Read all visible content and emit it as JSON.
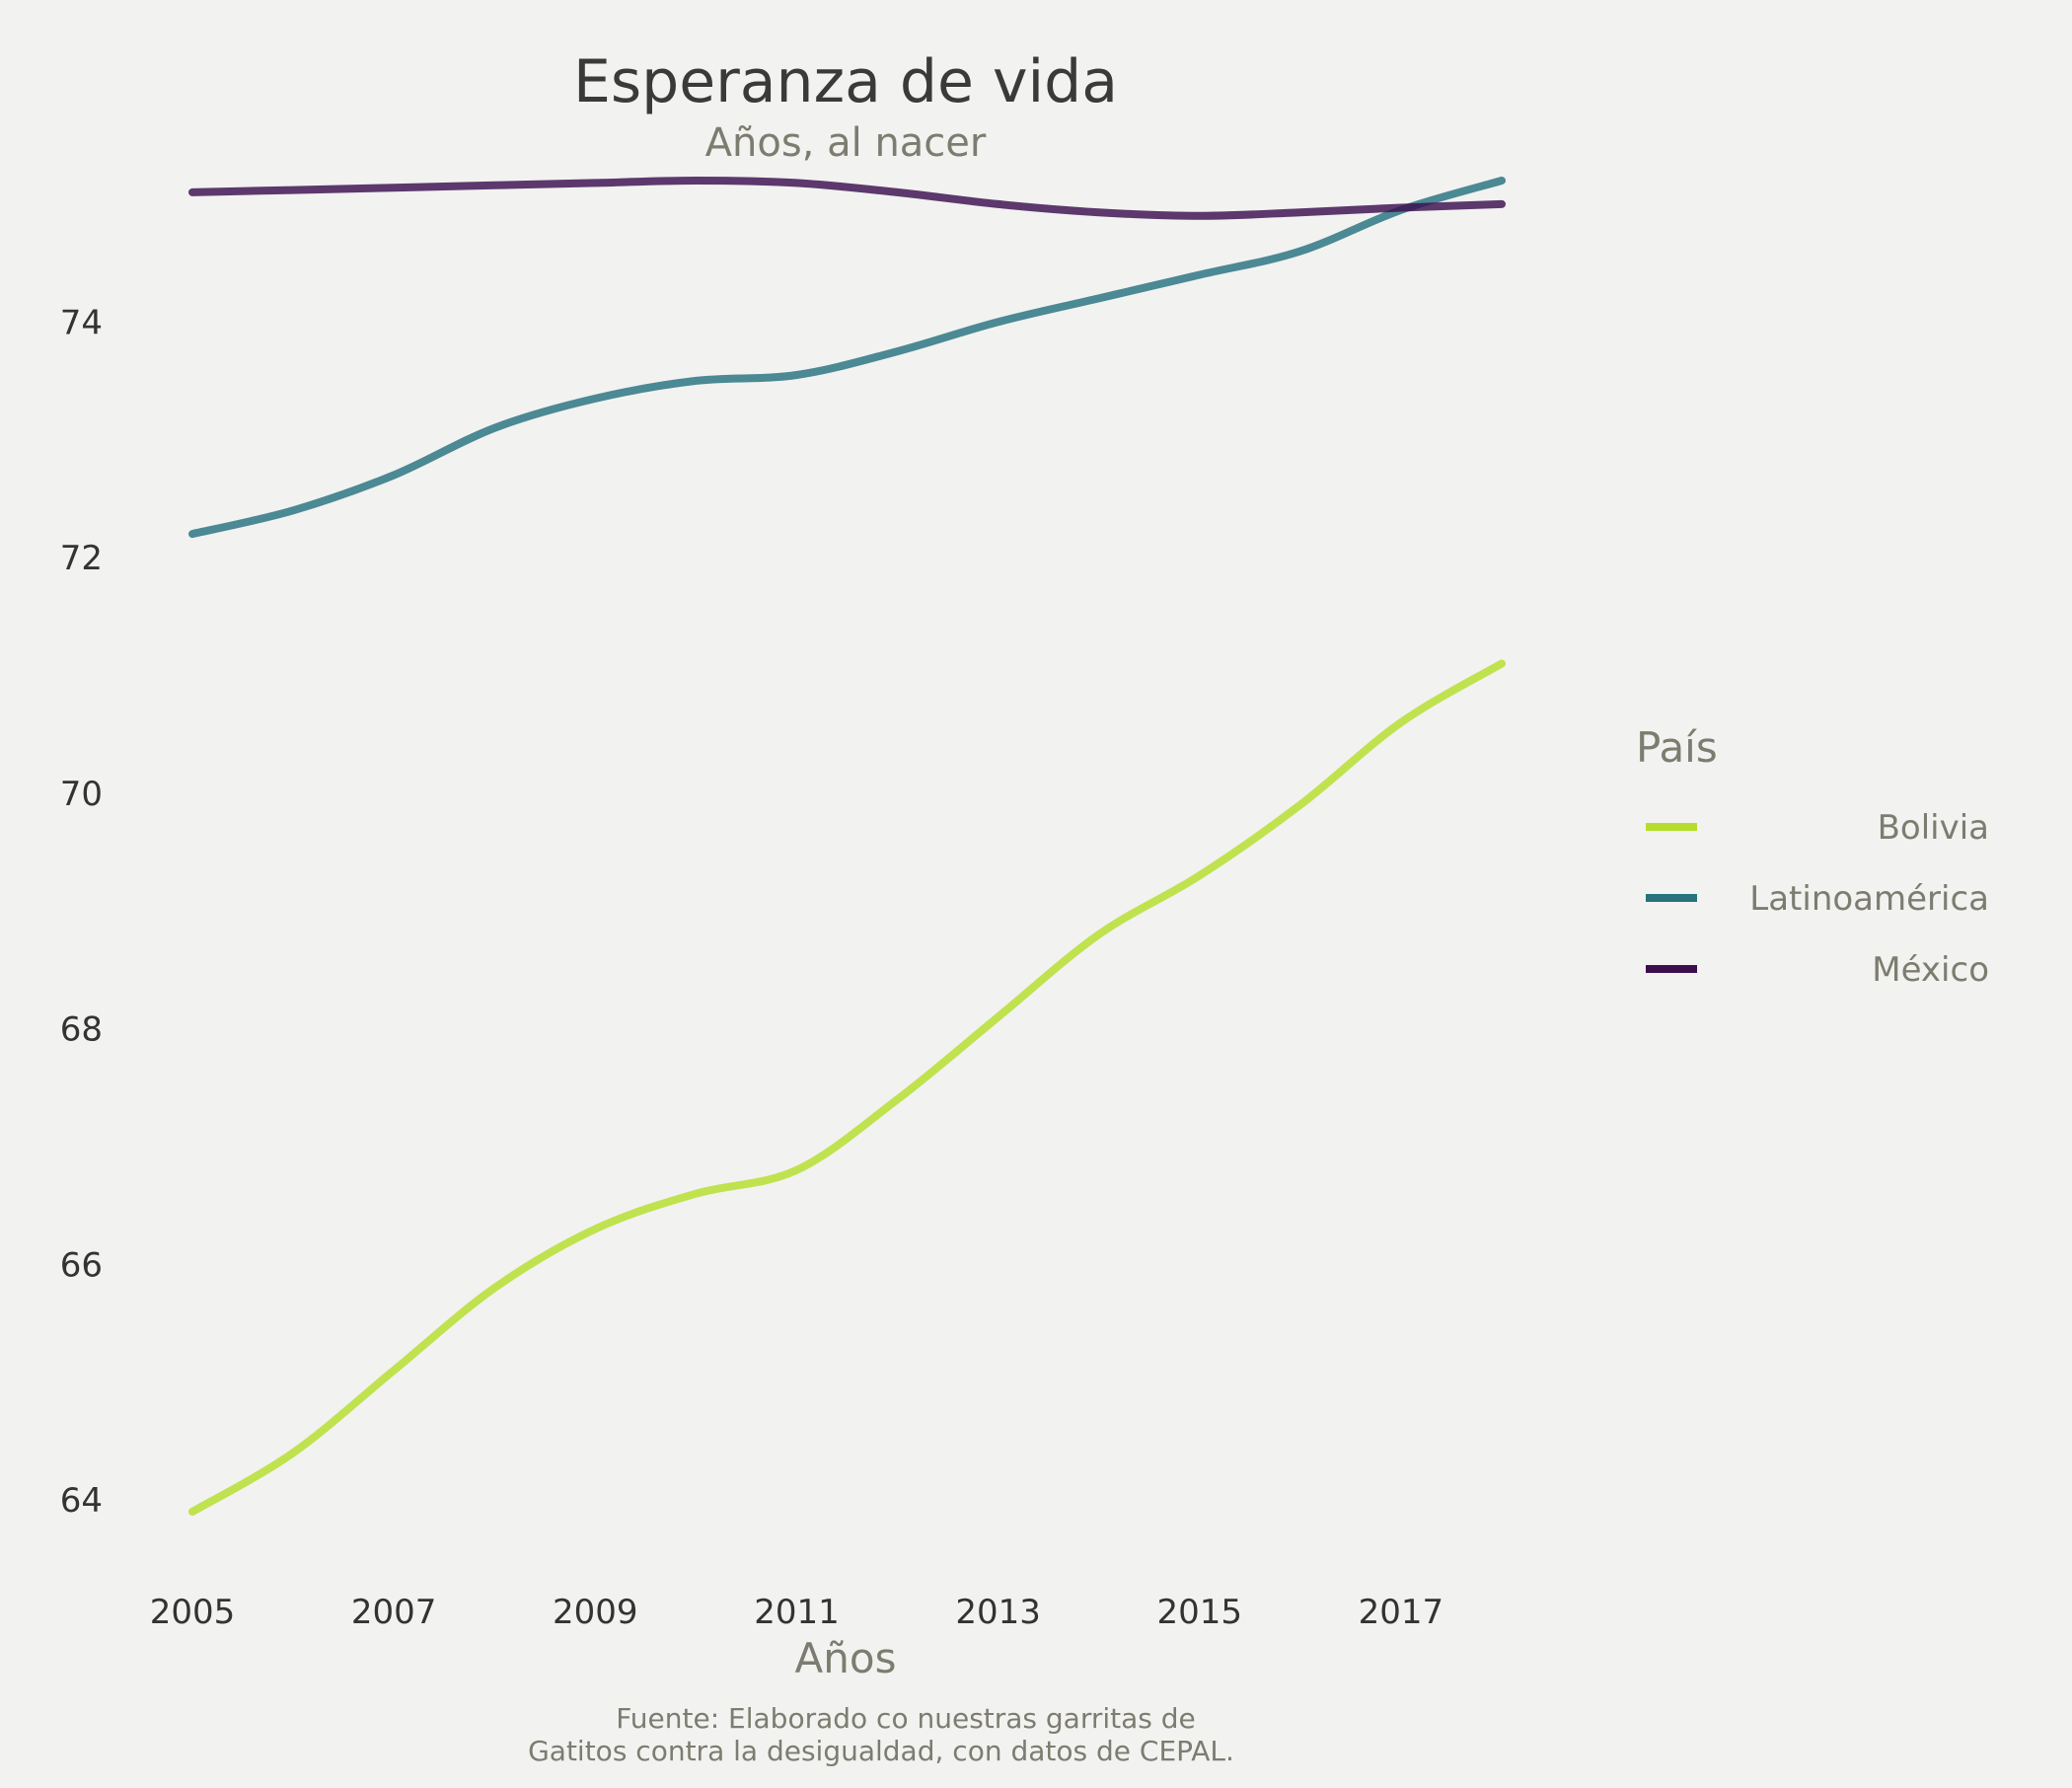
{
  "chart_data": {
    "type": "line",
    "title": "Esperanza de vida",
    "subtitle": "Años, al nacer",
    "xlabel": "Años",
    "ylabel": "",
    "caption_lines": [
      "Fuente: Elaborado co nuestras garritas de",
      "Gatitos contra la desigualdad, con datos de CEPAL."
    ],
    "x": [
      2005,
      2006,
      2007,
      2008,
      2009,
      2010,
      2011,
      2012,
      2013,
      2014,
      2015,
      2016,
      2017,
      2018
    ],
    "xticks": [
      2005,
      2007,
      2009,
      2011,
      2013,
      2015,
      2017
    ],
    "xlim": [
      2005,
      2018
    ],
    "yticks": [
      64,
      66,
      68,
      70,
      72,
      74
    ],
    "ylim": [
      63.4,
      75.6
    ],
    "grid": false,
    "legend": {
      "title": "País",
      "placement": "right"
    },
    "series": [
      {
        "name": "Bolivia",
        "color": "#b5de2b",
        "values": [
          63.9,
          64.4,
          65.1,
          65.8,
          66.3,
          66.6,
          66.8,
          67.4,
          68.1,
          68.8,
          69.3,
          69.9,
          70.6,
          71.1
        ]
      },
      {
        "name": "Latinoamérica",
        "color": "#26727f",
        "values": [
          72.2,
          72.4,
          72.7,
          73.1,
          73.35,
          73.5,
          73.55,
          73.75,
          74.0,
          74.2,
          74.4,
          74.6,
          74.95,
          75.2
        ]
      },
      {
        "name": "México",
        "color": "#3b0f4f",
        "values": [
          75.1,
          75.12,
          75.14,
          75.16,
          75.18,
          75.2,
          75.18,
          75.1,
          75.0,
          74.93,
          74.9,
          74.93,
          74.97,
          75.0
        ]
      }
    ]
  }
}
